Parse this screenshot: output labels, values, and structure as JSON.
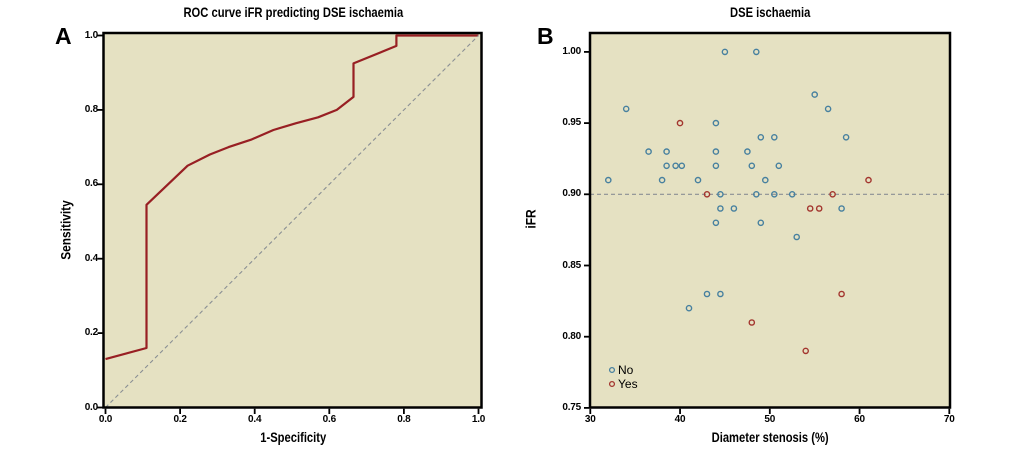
{
  "figure": {
    "panel_a": {
      "label": "A",
      "title": "ROC curve iFR predicting DSE ischaemia",
      "xlabel": "1-Specificity",
      "ylabel": "Sensitivity",
      "x_ticks": [
        "0.0",
        "0.2",
        "0.4",
        "0.6",
        "0.8",
        "1.0"
      ],
      "y_ticks": [
        "0.0",
        "0.2",
        "0.4",
        "0.6",
        "0.8",
        "1.0"
      ]
    },
    "panel_b": {
      "label": "B",
      "title": "DSE ischaemia",
      "xlabel": "Diameter stenosis (%)",
      "ylabel": "iFR",
      "x_ticks": [
        "30",
        "40",
        "50",
        "60",
        "70"
      ],
      "y_ticks": [
        "0.75",
        "0.80",
        "0.85",
        "0.90",
        "0.95",
        "1.00"
      ],
      "legend": {
        "items": [
          {
            "label": "No",
            "color": "#47809f",
            "marker": "open-circle"
          },
          {
            "label": "Yes",
            "color": "#a3352e",
            "marker": "open-circle"
          }
        ]
      }
    }
  },
  "colors": {
    "plot_bg": "#e5e1c2",
    "frame": "#000000",
    "dash_gray": "#8a8f94",
    "roc_red": "#981f23",
    "no_blue": "#47809f",
    "yes_red": "#a3352e"
  },
  "chart_data": [
    {
      "type": "line",
      "panel": "A",
      "title": "ROC curve iFR predicting DSE ischaemia",
      "xlabel": "1-Specificity",
      "ylabel": "Sensitivity",
      "xlim": [
        0,
        1
      ],
      "ylim": [
        0,
        1
      ],
      "xticks": [
        0,
        0.2,
        0.4,
        0.6,
        0.8,
        1.0
      ],
      "yticks": [
        0,
        0.2,
        0.4,
        0.6,
        0.8,
        1.0
      ],
      "grid": false,
      "series": [
        {
          "name": "ROC curve",
          "color": "#981f23",
          "style": "solid",
          "points": [
            [
              0,
              0.13
            ],
            [
              0.11,
              0.16
            ],
            [
              0.11,
              0.545
            ],
            [
              0.22,
              0.65
            ],
            [
              0.28,
              0.68
            ],
            [
              0.33,
              0.7
            ],
            [
              0.39,
              0.72
            ],
            [
              0.45,
              0.746
            ],
            [
              0.51,
              0.764
            ],
            [
              0.57,
              0.78
            ],
            [
              0.62,
              0.8
            ],
            [
              0.665,
              0.835
            ],
            [
              0.665,
              0.925
            ],
            [
              0.78,
              0.972
            ],
            [
              0.78,
              1.0
            ],
            [
              1.0,
              1.0
            ]
          ]
        },
        {
          "name": "Reference diagonal",
          "color": "#8a8f94",
          "style": "dashed",
          "points": [
            [
              0,
              0
            ],
            [
              1,
              1
            ]
          ]
        }
      ]
    },
    {
      "type": "scatter",
      "panel": "B",
      "title": "DSE ischaemia",
      "xlabel": "Diameter stenosis (%)",
      "ylabel": "iFR",
      "xlim": [
        30,
        70
      ],
      "ylim": [
        0.75,
        1.013
      ],
      "xticks": [
        30,
        40,
        50,
        60,
        70
      ],
      "yticks": [
        0.75,
        0.8,
        0.85,
        0.9,
        0.95,
        1.0
      ],
      "grid": false,
      "reference_line_y": 0.9,
      "legend_position": "bottom-left",
      "series": [
        {
          "name": "No",
          "color": "#47809f",
          "points": [
            [
              45,
              1.0
            ],
            [
              48.5,
              1.0
            ],
            [
              55,
              0.97
            ],
            [
              34,
              0.96
            ],
            [
              56.5,
              0.96
            ],
            [
              44,
              0.95
            ],
            [
              49,
              0.94
            ],
            [
              50.5,
              0.94
            ],
            [
              58.5,
              0.94
            ],
            [
              36.5,
              0.93
            ],
            [
              38.5,
              0.93
            ],
            [
              44,
              0.93
            ],
            [
              47.5,
              0.93
            ],
            [
              38.5,
              0.92
            ],
            [
              39.5,
              0.92
            ],
            [
              40.2,
              0.92
            ],
            [
              44,
              0.92
            ],
            [
              48,
              0.92
            ],
            [
              51,
              0.92
            ],
            [
              32,
              0.91
            ],
            [
              38,
              0.91
            ],
            [
              42,
              0.91
            ],
            [
              49.5,
              0.91
            ],
            [
              44.5,
              0.9
            ],
            [
              48.5,
              0.9
            ],
            [
              50.5,
              0.9
            ],
            [
              52.5,
              0.9
            ],
            [
              44.5,
              0.89
            ],
            [
              46,
              0.89
            ],
            [
              58,
              0.89
            ],
            [
              44,
              0.88
            ],
            [
              49,
              0.88
            ],
            [
              53,
              0.87
            ],
            [
              43,
              0.83
            ],
            [
              44.5,
              0.83
            ],
            [
              41,
              0.82
            ]
          ]
        },
        {
          "name": "Yes",
          "color": "#a3352e",
          "points": [
            [
              40,
              0.95
            ],
            [
              61,
              0.91
            ],
            [
              43,
              0.9
            ],
            [
              57,
              0.9
            ],
            [
              54.5,
              0.89
            ],
            [
              55.5,
              0.89
            ],
            [
              58,
              0.83
            ],
            [
              48,
              0.81
            ],
            [
              54,
              0.79
            ]
          ]
        }
      ]
    }
  ]
}
